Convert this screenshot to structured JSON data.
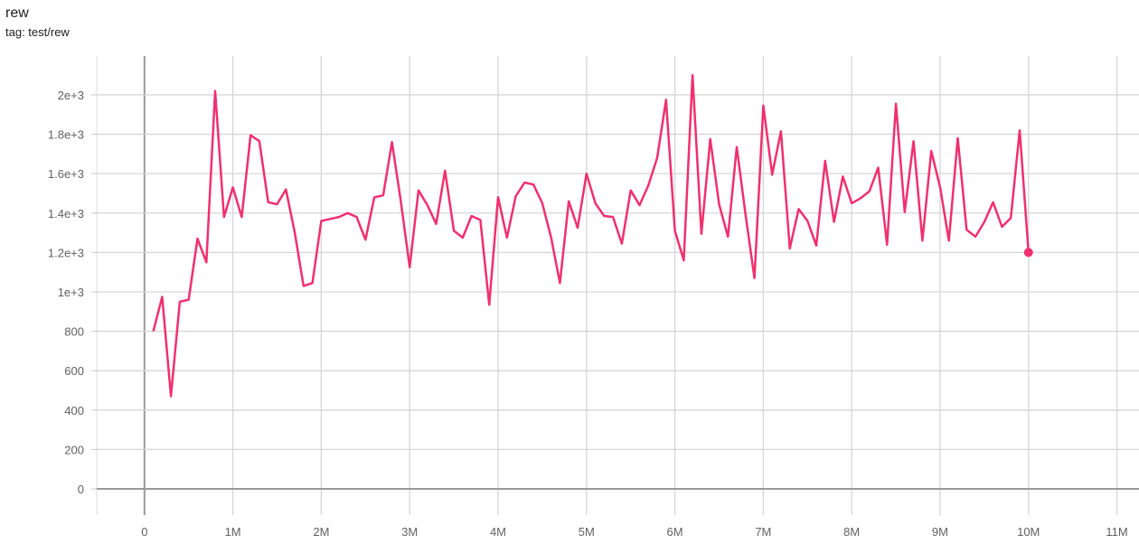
{
  "chart_data": {
    "type": "line",
    "title": "rew",
    "subtitle": "tag: test/rew",
    "xlabel": "",
    "ylabel": "",
    "xlim": [
      -0.54,
      11.25
    ],
    "ylim": [
      -133,
      2197
    ],
    "grid": true,
    "x_unit": "M",
    "x_ticks": [
      0,
      1,
      2,
      3,
      4,
      5,
      6,
      7,
      8,
      9,
      10,
      11
    ],
    "x_tick_labels": [
      "0",
      "1M",
      "2M",
      "3M",
      "4M",
      "5M",
      "6M",
      "7M",
      "8M",
      "9M",
      "10M",
      "11M"
    ],
    "y_ticks": [
      0,
      200,
      400,
      600,
      800,
      1000,
      1200,
      1400,
      1600,
      1800,
      2000
    ],
    "y_tick_labels": [
      "0",
      "200",
      "400",
      "600",
      "800",
      "1e+3",
      "1.2e+3",
      "1.4e+3",
      "1.6e+3",
      "1.8e+3",
      "2e+3"
    ],
    "line_color": "#f0306f",
    "series": [
      {
        "x": [
          0.1,
          0.2,
          0.3,
          0.4,
          0.5,
          0.6,
          0.7,
          0.8,
          0.9,
          1.0,
          1.1,
          1.2,
          1.3,
          1.4,
          1.5,
          1.6,
          1.7,
          1.8,
          1.9,
          2.0,
          2.1,
          2.2,
          2.3,
          2.4,
          2.5,
          2.6,
          2.7,
          2.8,
          2.9,
          3.0,
          3.1,
          3.2,
          3.3,
          3.4,
          3.5,
          3.6,
          3.7,
          3.8,
          3.9,
          4.0,
          4.1,
          4.2,
          4.3,
          4.4,
          4.5,
          4.6,
          4.7,
          4.8,
          4.9,
          5.0,
          5.1,
          5.2,
          5.3,
          5.4,
          5.5,
          5.6,
          5.7,
          5.8,
          5.9,
          6.0,
          6.1,
          6.2,
          6.3,
          6.4,
          6.5,
          6.6,
          6.7,
          6.8,
          6.9,
          7.0,
          7.1,
          7.2,
          7.3,
          7.4,
          7.5,
          7.6,
          7.7,
          7.8,
          7.9,
          8.0,
          8.1,
          8.2,
          8.3,
          8.4,
          8.5,
          8.6,
          8.7,
          8.8,
          8.9,
          9.0,
          9.1,
          9.2,
          9.3,
          9.4,
          9.5,
          9.6,
          9.7,
          9.8,
          9.9,
          10.0
        ],
        "values": [
          800,
          975,
          470,
          950,
          960,
          1270,
          1150,
          2020,
          1380,
          1530,
          1380,
          1795,
          1765,
          1455,
          1445,
          1520,
          1300,
          1030,
          1045,
          1360,
          1370,
          1380,
          1400,
          1380,
          1265,
          1480,
          1490,
          1760,
          1460,
          1125,
          1515,
          1440,
          1345,
          1615,
          1310,
          1275,
          1385,
          1365,
          935,
          1480,
          1275,
          1485,
          1555,
          1545,
          1450,
          1275,
          1045,
          1460,
          1325,
          1600,
          1450,
          1385,
          1380,
          1245,
          1515,
          1440,
          1540,
          1680,
          1975,
          1310,
          1160,
          2100,
          1295,
          1775,
          1445,
          1280,
          1735,
          1390,
          1070,
          1945,
          1595,
          1815,
          1220,
          1420,
          1360,
          1235,
          1665,
          1355,
          1585,
          1450,
          1475,
          1510,
          1630,
          1240,
          1955,
          1405,
          1765,
          1260,
          1715,
          1530,
          1260,
          1780,
          1315,
          1280,
          1355,
          1455,
          1330,
          1375,
          1820,
          1200
        ]
      }
    ]
  }
}
